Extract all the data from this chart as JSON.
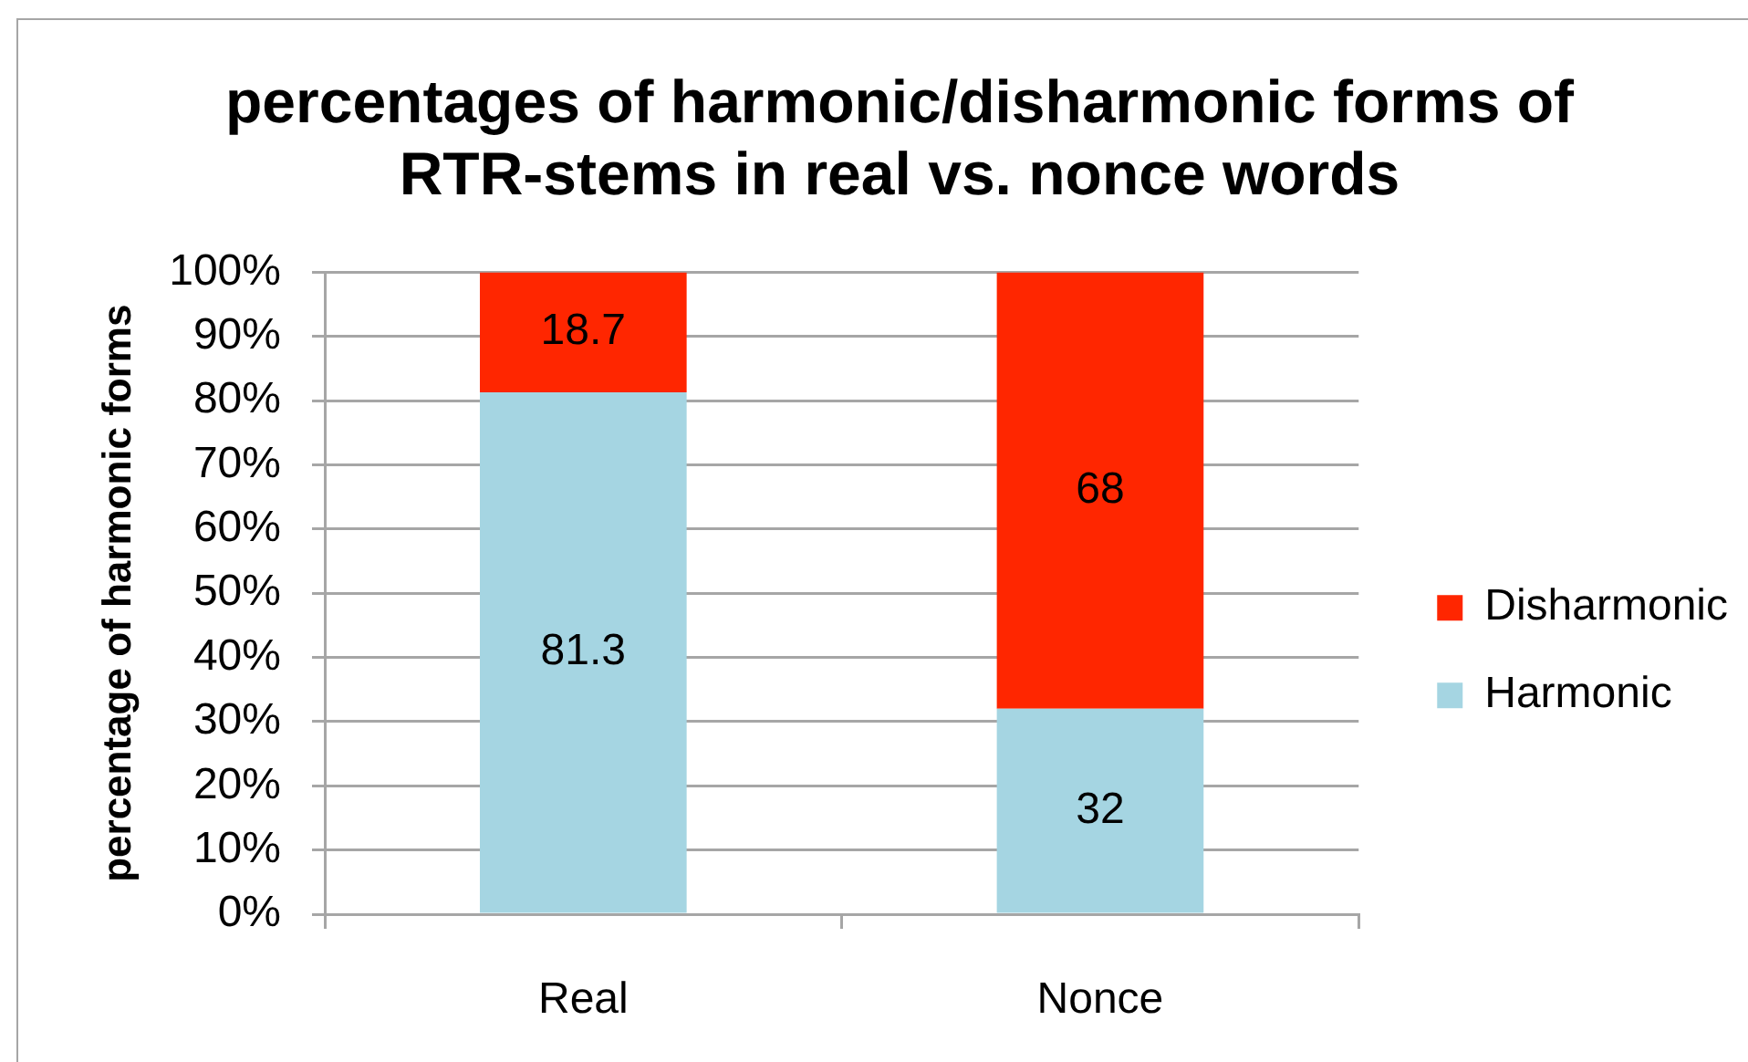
{
  "chart_data": {
    "type": "bar",
    "title": "percentages of harmonic/disharmonic forms of RTR-stems in real vs. nonce words",
    "ylabel": "percentage of harmonic forms",
    "categories": [
      "Real",
      "Nonce"
    ],
    "series": [
      {
        "name": "Harmonic",
        "color": "#a5d5e2",
        "values": [
          81.3,
          32
        ]
      },
      {
        "name": "Disharmonic",
        "color": "#ff2600",
        "values": [
          18.7,
          68
        ]
      }
    ],
    "stacked": true,
    "ylim": [
      0,
      100
    ],
    "yticks": [
      {
        "value": 0,
        "label": "0%"
      },
      {
        "value": 10,
        "label": "10%"
      },
      {
        "value": 20,
        "label": "20%"
      },
      {
        "value": 30,
        "label": "30%"
      },
      {
        "value": 40,
        "label": "40%"
      },
      {
        "value": 50,
        "label": "50%"
      },
      {
        "value": 60,
        "label": "60%"
      },
      {
        "value": 70,
        "label": "70%"
      },
      {
        "value": 80,
        "label": "80%"
      },
      {
        "value": 90,
        "label": "90%"
      },
      {
        "value": 100,
        "label": "100%"
      }
    ],
    "grid": "y",
    "legend": "right",
    "data_labels": true
  }
}
